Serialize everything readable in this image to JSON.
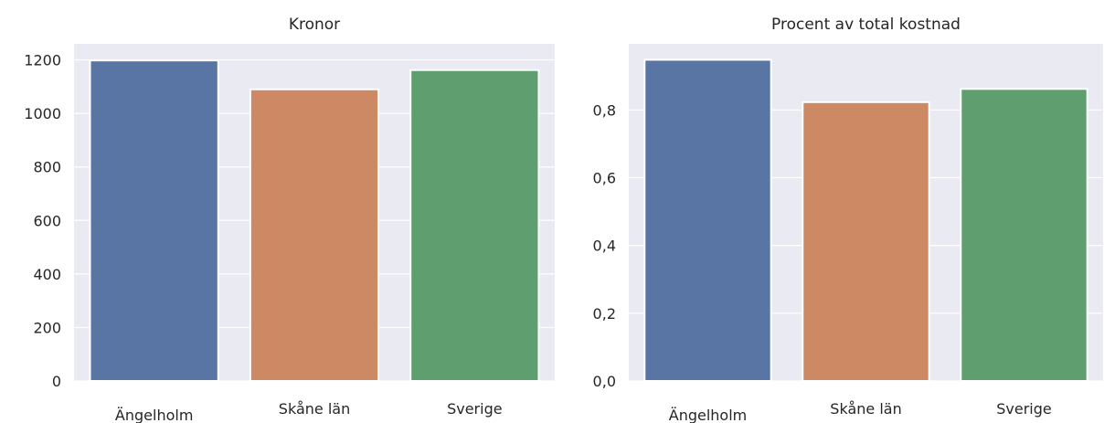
{
  "chart_data": [
    {
      "type": "bar",
      "title": "Kronor",
      "xlabel": "",
      "ylabel": "",
      "categories": [
        "Ängelholm",
        "Skåne län",
        "Sverige"
      ],
      "values": [
        1198,
        1090,
        1162
      ],
      "ylim": [
        0,
        1260
      ],
      "yticks": [
        "0",
        "200",
        "400",
        "600",
        "800",
        "1000",
        "1200"
      ],
      "grid": true,
      "colors": [
        "#5975a4",
        "#cc8963",
        "#5f9e6e"
      ],
      "background": "#eaeaf2"
    },
    {
      "type": "bar",
      "title": "Procent av total kostnad",
      "xlabel": "",
      "ylabel": "",
      "categories": [
        "Ängelholm",
        "Skåne län",
        "Sverige"
      ],
      "values": [
        0.948,
        0.823,
        0.862
      ],
      "ylim": [
        0,
        0.995
      ],
      "yticks": [
        "0,0",
        "0,2",
        "0,4",
        "0,6",
        "0,8"
      ],
      "grid": true,
      "colors": [
        "#5975a4",
        "#cc8963",
        "#5f9e6e"
      ],
      "background": "#eaeaf2"
    }
  ]
}
